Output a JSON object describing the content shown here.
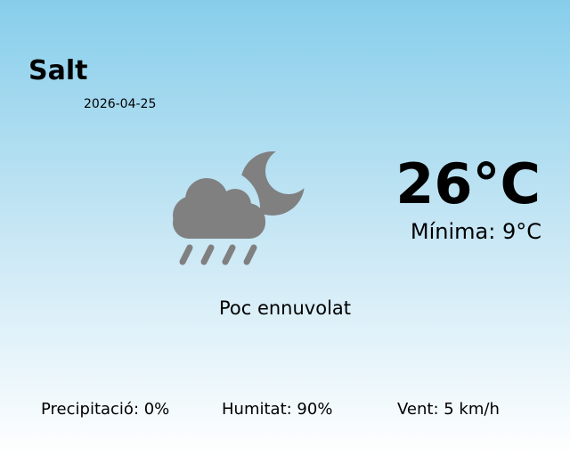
{
  "city": "Salt",
  "date": "2026-04-25",
  "temperature": "26°C",
  "minimum": "Mínima: 9°C",
  "condition": "Poc ennuvolat",
  "condition_icon": "cloud-moon-rain-icon",
  "stats": {
    "precipitation": "Precipitació: 0%",
    "humidity": "Humitat: 90%",
    "wind": "Vent: 5 km/h"
  },
  "colors": {
    "background_top": "#87ceeb",
    "background_bottom": "#ffffff",
    "icon": "#808080"
  }
}
